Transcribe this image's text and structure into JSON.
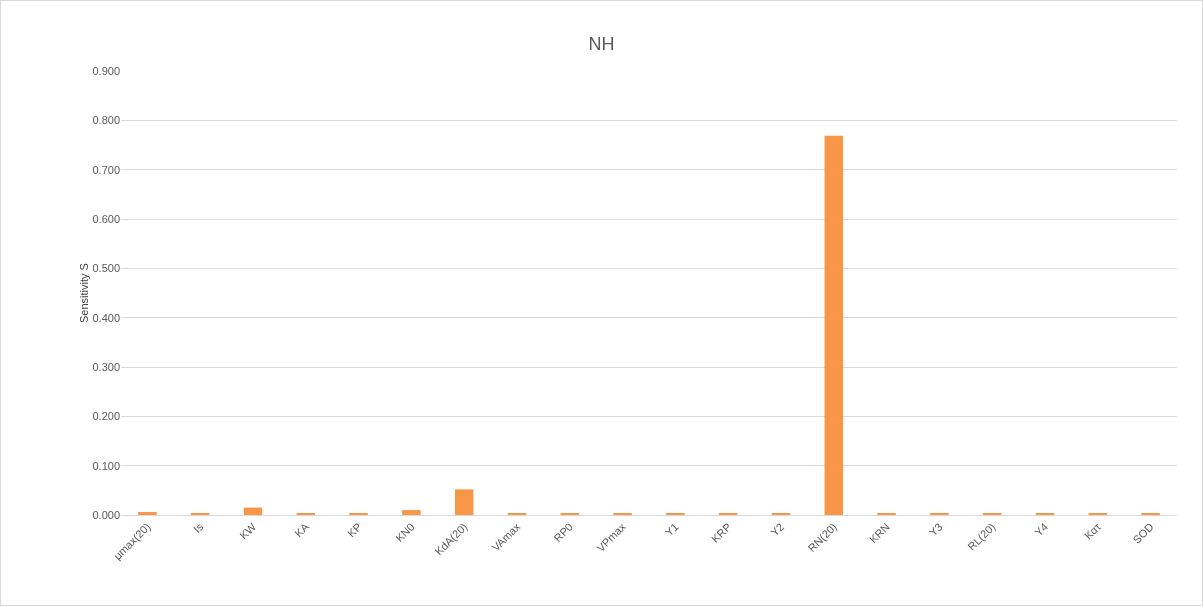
{
  "chart_data": {
    "type": "bar",
    "title": "NH",
    "ylabel": "Sensitivity S",
    "categories": [
      "μmax(20)",
      "Is",
      "KW",
      "KA",
      "KP",
      "KN0",
      "KdA(20)",
      "VAmax",
      "RP0",
      "VPmax",
      "Y1",
      "KRP",
      "Y2",
      "RN(20)",
      "KRN",
      "Y3",
      "RL(20)",
      "Y4",
      "Kατ",
      "SOD"
    ],
    "values": [
      0.006,
      0.003,
      0.015,
      0.003,
      0.003,
      0.01,
      0.052,
      0.003,
      0.003,
      0.003,
      0.003,
      0.003,
      0.003,
      0.769,
      0.003,
      0.003,
      0.003,
      0.003,
      0.003,
      0.003
    ],
    "color": "#f79646",
    "ylim": [
      0,
      0.9
    ],
    "yticks": [
      {
        "value": 0,
        "label": "0.000"
      },
      {
        "value": 0.1,
        "label": "0.100"
      },
      {
        "value": 0.2,
        "label": "0.200"
      },
      {
        "value": 0.3,
        "label": "0.300"
      },
      {
        "value": 0.4,
        "label": "0.400"
      },
      {
        "value": 0.5,
        "label": "0.500"
      },
      {
        "value": 0.6,
        "label": "0.600"
      },
      {
        "value": 0.7,
        "label": "0.700"
      },
      {
        "value": 0.8,
        "label": "0.800"
      },
      {
        "value": 0.9,
        "label": "0.900"
      }
    ],
    "grid": "y"
  }
}
